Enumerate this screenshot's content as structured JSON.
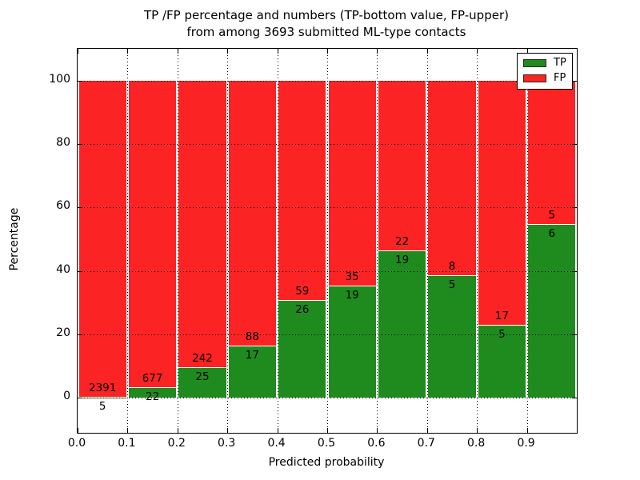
{
  "header": {
    "title_line1": "TP /FP percentage and numbers (TP-bottom value, FP-upper)",
    "title_line2": "from among 3693 submitted ML-type contacts"
  },
  "axes": {
    "xlabel": "Predicted probability",
    "ylabel": "Percentage"
  },
  "legend": {
    "items": [
      {
        "label": "TP",
        "color": "#1f8b1f"
      },
      {
        "label": "FP",
        "color": "#fb2323"
      }
    ]
  },
  "colors": {
    "tp": "#1f8b1f",
    "fp": "#fb2323",
    "grid": "#000000",
    "text": "#000000",
    "background": "#ffffff"
  },
  "chart_data": {
    "type": "bar",
    "stacked": true,
    "title": "TP /FP percentage and numbers (TP-bottom value, FP-upper) from among 3693 submitted ML-type contacts",
    "total_contacts": 3693,
    "xlabel": "Predicted probability",
    "ylabel": "Percentage",
    "xlim": [
      0.0,
      1.0
    ],
    "ylim": [
      -11,
      110
    ],
    "x_tick_values": [
      0.0,
      0.1,
      0.2,
      0.3,
      0.4,
      0.5,
      0.6,
      0.7,
      0.8,
      0.9
    ],
    "x_tick_labels": [
      "0.0",
      "0.1",
      "0.2",
      "0.3",
      "0.4",
      "0.5",
      "0.6",
      "0.7",
      "0.8",
      "0.9"
    ],
    "y_tick_values": [
      0,
      20,
      40,
      60,
      80,
      100
    ],
    "y_tick_labels": [
      "0",
      "20",
      "40",
      "60",
      "80",
      "100"
    ],
    "grid": "dotted",
    "legend_position": "upper right",
    "series_names": [
      "TP",
      "FP"
    ],
    "bins": [
      {
        "range": [
          0.0,
          0.1
        ],
        "tp_count": 5,
        "fp_count": 2391,
        "tp_pct": 0.21,
        "fp_pct": 99.79
      },
      {
        "range": [
          0.1,
          0.2
        ],
        "tp_count": 22,
        "fp_count": 677,
        "tp_pct": 3.15,
        "fp_pct": 96.85
      },
      {
        "range": [
          0.2,
          0.3
        ],
        "tp_count": 25,
        "fp_count": 242,
        "tp_pct": 9.36,
        "fp_pct": 90.64
      },
      {
        "range": [
          0.3,
          0.4
        ],
        "tp_count": 17,
        "fp_count": 88,
        "tp_pct": 16.19,
        "fp_pct": 83.81
      },
      {
        "range": [
          0.4,
          0.5
        ],
        "tp_count": 26,
        "fp_count": 59,
        "tp_pct": 30.59,
        "fp_pct": 69.41
      },
      {
        "range": [
          0.5,
          0.6
        ],
        "tp_count": 19,
        "fp_count": 35,
        "tp_pct": 35.19,
        "fp_pct": 64.81
      },
      {
        "range": [
          0.6,
          0.7
        ],
        "tp_count": 19,
        "fp_count": 22,
        "tp_pct": 46.34,
        "fp_pct": 53.66
      },
      {
        "range": [
          0.7,
          0.8
        ],
        "tp_count": 5,
        "fp_count": 8,
        "tp_pct": 38.46,
        "fp_pct": 61.54
      },
      {
        "range": [
          0.8,
          0.9
        ],
        "tp_count": 5,
        "fp_count": 17,
        "tp_pct": 22.73,
        "fp_pct": 77.27
      },
      {
        "range": [
          0.9,
          1.0
        ],
        "tp_count": 6,
        "fp_count": 5,
        "tp_pct": 54.55,
        "fp_pct": 45.45
      }
    ]
  }
}
